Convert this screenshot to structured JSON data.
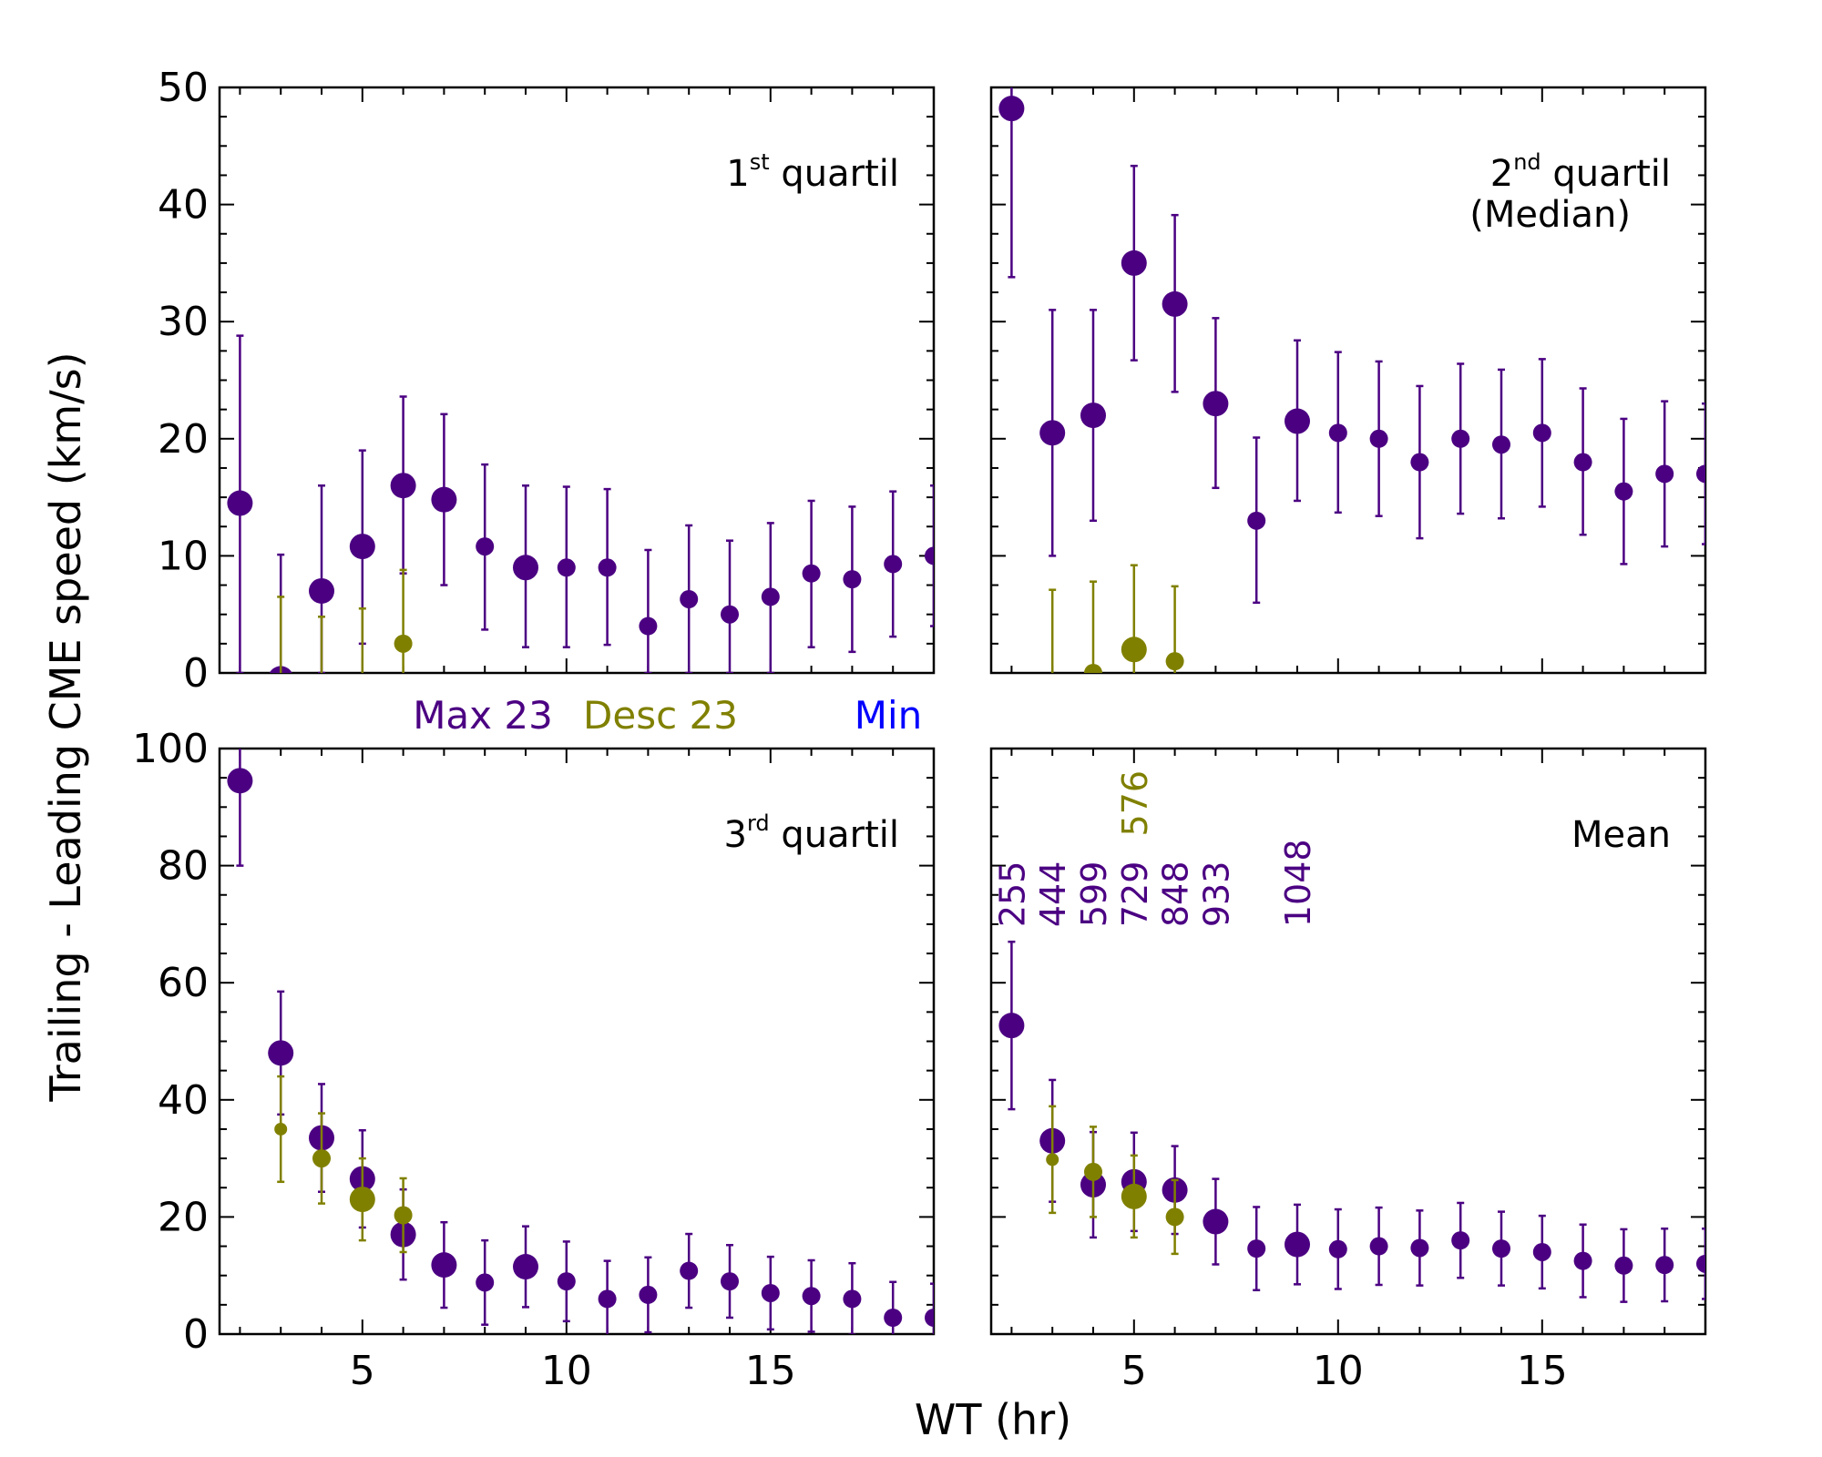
{
  "figure": {
    "xlabel": "WT (hr)",
    "ylabel": "Trailing - Leading CME speed (km/s)",
    "legend": [
      {
        "label": "Max 23",
        "color": "#4b0082"
      },
      {
        "label": "Desc 23",
        "color": "#808000"
      },
      {
        "label": "Min",
        "color": "#0000ff"
      }
    ],
    "colors": {
      "max23": "#4b0082",
      "desc23": "#808000",
      "min": "#0000ff",
      "axis": "#000000"
    }
  },
  "chart_data": [
    {
      "type": "scatter",
      "panel": "top-left",
      "title": "1st quartil",
      "title_main": "1",
      "title_sup": "st",
      "title_rest": "quartil",
      "xlim": [
        1.5,
        19
      ],
      "ylim": [
        0,
        50
      ],
      "yticks": [
        0,
        10,
        20,
        30,
        40,
        50
      ],
      "xticks": [
        5,
        10,
        15
      ],
      "show_yticklabels": true,
      "show_xticklabels": false,
      "series": [
        {
          "name": "Max 23",
          "color": "#4b0082",
          "points": [
            {
              "x": 2,
              "y": 14.5,
              "lo": 0,
              "hi": 28.8,
              "size": "l"
            },
            {
              "x": 3,
              "y": -0.5,
              "lo": -0.5,
              "hi": 10.1,
              "size": "l"
            },
            {
              "x": 4,
              "y": 7,
              "lo": 0,
              "hi": 16,
              "size": "l"
            },
            {
              "x": 5,
              "y": 10.8,
              "lo": 2.5,
              "hi": 19,
              "size": "l"
            },
            {
              "x": 6,
              "y": 16,
              "lo": 8.5,
              "hi": 23.6,
              "size": "l"
            },
            {
              "x": 7,
              "y": 14.8,
              "lo": 7.5,
              "hi": 22.1,
              "size": "l"
            },
            {
              "x": 8,
              "y": 10.8,
              "lo": 3.7,
              "hi": 17.8,
              "size": "m"
            },
            {
              "x": 9,
              "y": 9,
              "lo": 2.2,
              "hi": 16,
              "size": "l"
            },
            {
              "x": 10,
              "y": 9,
              "lo": 2.2,
              "hi": 15.9,
              "size": "m"
            },
            {
              "x": 11,
              "y": 9,
              "lo": 2.4,
              "hi": 15.7,
              "size": "m"
            },
            {
              "x": 12,
              "y": 4,
              "lo": 0,
              "hi": 10.5,
              "size": "m"
            },
            {
              "x": 13,
              "y": 6.3,
              "lo": 0,
              "hi": 12.6,
              "size": "m"
            },
            {
              "x": 14,
              "y": 5,
              "lo": 0,
              "hi": 11.3,
              "size": "m"
            },
            {
              "x": 15,
              "y": 6.5,
              "lo": 0,
              "hi": 12.8,
              "size": "m"
            },
            {
              "x": 16,
              "y": 8.5,
              "lo": 2.2,
              "hi": 14.7,
              "size": "m"
            },
            {
              "x": 17,
              "y": 8,
              "lo": 1.8,
              "hi": 14.2,
              "size": "m"
            },
            {
              "x": 18,
              "y": 9.3,
              "lo": 3.1,
              "hi": 15.5,
              "size": "m"
            },
            {
              "x": 19,
              "y": 10,
              "lo": 4,
              "hi": 16,
              "size": "m"
            }
          ]
        },
        {
          "name": "Desc 23",
          "color": "#808000",
          "points": [
            {
              "x": 3,
              "y": -1,
              "lo": -1,
              "hi": 6.5,
              "size": "s"
            },
            {
              "x": 4,
              "y": -1,
              "lo": -1,
              "hi": 4.8,
              "size": "s"
            },
            {
              "x": 5,
              "y": -1,
              "lo": -1,
              "hi": 5.5,
              "size": "s"
            },
            {
              "x": 6,
              "y": 2.5,
              "lo": -1,
              "hi": 8.8,
              "size": "m"
            }
          ]
        }
      ]
    },
    {
      "type": "scatter",
      "panel": "top-right",
      "title": "2nd quartil (Median)",
      "title_main": "2",
      "title_sup": "nd",
      "title_rest": "quartil",
      "title_line2": "(Median)",
      "xlim": [
        1.5,
        19
      ],
      "ylim": [
        0,
        50
      ],
      "yticks": [
        0,
        10,
        20,
        30,
        40,
        50
      ],
      "xticks": [
        5,
        10,
        15
      ],
      "show_yticklabels": false,
      "show_xticklabels": false,
      "series": [
        {
          "name": "Max 23",
          "color": "#4b0082",
          "points": [
            {
              "x": 2,
              "y": 48.2,
              "lo": 33.8,
              "hi": 62,
              "size": "l"
            },
            {
              "x": 3,
              "y": 20.5,
              "lo": 10,
              "hi": 31,
              "size": "l"
            },
            {
              "x": 4,
              "y": 22,
              "lo": 13,
              "hi": 31,
              "size": "l"
            },
            {
              "x": 5,
              "y": 35,
              "lo": 26.7,
              "hi": 43.3,
              "size": "l"
            },
            {
              "x": 6,
              "y": 31.5,
              "lo": 24,
              "hi": 39.1,
              "size": "l"
            },
            {
              "x": 7,
              "y": 23,
              "lo": 15.8,
              "hi": 30.3,
              "size": "l"
            },
            {
              "x": 8,
              "y": 13,
              "lo": 6,
              "hi": 20.1,
              "size": "m"
            },
            {
              "x": 9,
              "y": 21.5,
              "lo": 14.7,
              "hi": 28.4,
              "size": "l"
            },
            {
              "x": 10,
              "y": 20.5,
              "lo": 13.7,
              "hi": 27.4,
              "size": "m"
            },
            {
              "x": 11,
              "y": 20,
              "lo": 13.4,
              "hi": 26.6,
              "size": "m"
            },
            {
              "x": 12,
              "y": 18,
              "lo": 11.5,
              "hi": 24.5,
              "size": "m"
            },
            {
              "x": 13,
              "y": 20,
              "lo": 13.6,
              "hi": 26.4,
              "size": "m"
            },
            {
              "x": 14,
              "y": 19.5,
              "lo": 13.2,
              "hi": 25.9,
              "size": "m"
            },
            {
              "x": 15,
              "y": 20.5,
              "lo": 14.2,
              "hi": 26.8,
              "size": "m"
            },
            {
              "x": 16,
              "y": 18,
              "lo": 11.8,
              "hi": 24.3,
              "size": "m"
            },
            {
              "x": 17,
              "y": 15.5,
              "lo": 9.3,
              "hi": 21.7,
              "size": "m"
            },
            {
              "x": 18,
              "y": 17,
              "lo": 10.8,
              "hi": 23.2,
              "size": "m"
            },
            {
              "x": 19,
              "y": 17,
              "lo": 11,
              "hi": 23,
              "size": "m"
            }
          ]
        },
        {
          "name": "Desc 23",
          "color": "#808000",
          "points": [
            {
              "x": 3,
              "y": -1,
              "lo": -1,
              "hi": 7.1,
              "size": "s"
            },
            {
              "x": 4,
              "y": 0,
              "lo": -1,
              "hi": 7.8,
              "size": "m"
            },
            {
              "x": 5,
              "y": 2,
              "lo": -1,
              "hi": 9.2,
              "size": "l"
            },
            {
              "x": 6,
              "y": 1,
              "lo": -1,
              "hi": 7.4,
              "size": "m"
            }
          ]
        }
      ]
    },
    {
      "type": "scatter",
      "panel": "bottom-left",
      "title": "3rd quartil",
      "title_main": "3",
      "title_sup": "rd",
      "title_rest": "quartil",
      "xlim": [
        1.5,
        19
      ],
      "ylim": [
        0,
        100
      ],
      "yticks": [
        0,
        20,
        40,
        60,
        80,
        100
      ],
      "xticks": [
        5,
        10,
        15
      ],
      "show_yticklabels": true,
      "show_xticklabels": true,
      "series": [
        {
          "name": "Max 23",
          "color": "#4b0082",
          "points": [
            {
              "x": 2,
              "y": 94.5,
              "lo": 80,
              "hi": 110,
              "size": "l"
            },
            {
              "x": 3,
              "y": 48,
              "lo": 37.5,
              "hi": 58.5,
              "size": "l"
            },
            {
              "x": 4,
              "y": 33.5,
              "lo": 24.3,
              "hi": 42.7,
              "size": "l"
            },
            {
              "x": 5,
              "y": 26.5,
              "lo": 18.2,
              "hi": 34.8,
              "size": "l"
            },
            {
              "x": 6,
              "y": 17,
              "lo": 9.3,
              "hi": 24.7,
              "size": "l"
            },
            {
              "x": 7,
              "y": 11.8,
              "lo": 4.5,
              "hi": 19.1,
              "size": "l"
            },
            {
              "x": 8,
              "y": 8.8,
              "lo": 1.6,
              "hi": 16,
              "size": "m"
            },
            {
              "x": 9,
              "y": 11.5,
              "lo": 4.6,
              "hi": 18.4,
              "size": "l"
            },
            {
              "x": 10,
              "y": 9,
              "lo": 2.2,
              "hi": 15.8,
              "size": "m"
            },
            {
              "x": 11,
              "y": 6,
              "lo": -0.5,
              "hi": 12.5,
              "size": "m"
            },
            {
              "x": 12,
              "y": 6.7,
              "lo": 0.3,
              "hi": 13.1,
              "size": "m"
            },
            {
              "x": 13,
              "y": 10.8,
              "lo": 4.5,
              "hi": 17.1,
              "size": "m"
            },
            {
              "x": 14,
              "y": 9,
              "lo": 2.8,
              "hi": 15.2,
              "size": "m"
            },
            {
              "x": 15,
              "y": 7,
              "lo": 0.8,
              "hi": 13.2,
              "size": "m"
            },
            {
              "x": 16,
              "y": 6.5,
              "lo": 0.4,
              "hi": 12.6,
              "size": "m"
            },
            {
              "x": 17,
              "y": 6,
              "lo": -0.1,
              "hi": 12.1,
              "size": "m"
            },
            {
              "x": 18,
              "y": 2.8,
              "lo": -3.3,
              "hi": 8.9,
              "size": "m"
            },
            {
              "x": 19,
              "y": 2.8,
              "lo": -3,
              "hi": 8.6,
              "size": "m"
            }
          ]
        },
        {
          "name": "Desc 23",
          "color": "#808000",
          "points": [
            {
              "x": 3,
              "y": 35,
              "lo": 26,
              "hi": 44,
              "size": "s"
            },
            {
              "x": 4,
              "y": 30,
              "lo": 22.3,
              "hi": 37.7,
              "size": "m"
            },
            {
              "x": 5,
              "y": 23,
              "lo": 16,
              "hi": 30,
              "size": "l"
            },
            {
              "x": 6,
              "y": 20.3,
              "lo": 14,
              "hi": 26.6,
              "size": "m"
            }
          ]
        }
      ]
    },
    {
      "type": "scatter",
      "panel": "bottom-right",
      "title": "Mean",
      "title_main": "Mean",
      "xlim": [
        1.5,
        19
      ],
      "ylim": [
        0,
        100
      ],
      "yticks": [
        0,
        20,
        40,
        60,
        80,
        100
      ],
      "xticks": [
        5,
        10,
        15
      ],
      "show_yticklabels": false,
      "show_xticklabels": true,
      "annotations": [
        {
          "text": "255",
          "x": 2,
          "color": "#4b0082"
        },
        {
          "text": "444",
          "x": 3,
          "color": "#4b0082"
        },
        {
          "text": "599",
          "x": 4,
          "color": "#4b0082"
        },
        {
          "text": "729",
          "x": 5,
          "color": "#4b0082"
        },
        {
          "text": "848",
          "x": 6,
          "color": "#4b0082"
        },
        {
          "text": "933",
          "x": 7,
          "color": "#4b0082"
        },
        {
          "text": "1048",
          "x": 9,
          "color": "#4b0082"
        },
        {
          "text": "576",
          "x": 5,
          "color": "#808000"
        }
      ],
      "series": [
        {
          "name": "Max 23",
          "color": "#4b0082",
          "points": [
            {
              "x": 2,
              "y": 52.7,
              "lo": 38.4,
              "hi": 67,
              "size": "l"
            },
            {
              "x": 3,
              "y": 33,
              "lo": 22.6,
              "hi": 43.4,
              "size": "l"
            },
            {
              "x": 4,
              "y": 25.5,
              "lo": 16.5,
              "hi": 34.5,
              "size": "l"
            },
            {
              "x": 5,
              "y": 26,
              "lo": 17.6,
              "hi": 34.4,
              "size": "l"
            },
            {
              "x": 6,
              "y": 24.6,
              "lo": 17.1,
              "hi": 32.1,
              "size": "l"
            },
            {
              "x": 7,
              "y": 19.2,
              "lo": 11.9,
              "hi": 26.5,
              "size": "l"
            },
            {
              "x": 8,
              "y": 14.6,
              "lo": 7.5,
              "hi": 21.7,
              "size": "m"
            },
            {
              "x": 9,
              "y": 15.3,
              "lo": 8.5,
              "hi": 22.1,
              "size": "l"
            },
            {
              "x": 10,
              "y": 14.5,
              "lo": 7.7,
              "hi": 21.3,
              "size": "m"
            },
            {
              "x": 11,
              "y": 15,
              "lo": 8.4,
              "hi": 21.6,
              "size": "m"
            },
            {
              "x": 12,
              "y": 14.7,
              "lo": 8.3,
              "hi": 21.1,
              "size": "m"
            },
            {
              "x": 13,
              "y": 16,
              "lo": 9.6,
              "hi": 22.4,
              "size": "m"
            },
            {
              "x": 14,
              "y": 14.6,
              "lo": 8.3,
              "hi": 20.9,
              "size": "m"
            },
            {
              "x": 15,
              "y": 14,
              "lo": 7.8,
              "hi": 20.2,
              "size": "m"
            },
            {
              "x": 16,
              "y": 12.5,
              "lo": 6.3,
              "hi": 18.7,
              "size": "m"
            },
            {
              "x": 17,
              "y": 11.7,
              "lo": 5.5,
              "hi": 17.9,
              "size": "m"
            },
            {
              "x": 18,
              "y": 11.8,
              "lo": 5.6,
              "hi": 18,
              "size": "m"
            },
            {
              "x": 19,
              "y": 12,
              "lo": 6,
              "hi": 18,
              "size": "m"
            }
          ]
        },
        {
          "name": "Desc 23",
          "color": "#808000",
          "points": [
            {
              "x": 3,
              "y": 29.8,
              "lo": 20.7,
              "hi": 38.9,
              "size": "s"
            },
            {
              "x": 4,
              "y": 27.7,
              "lo": 20,
              "hi": 35.4,
              "size": "m"
            },
            {
              "x": 5,
              "y": 23.5,
              "lo": 16.5,
              "hi": 30.5,
              "size": "l"
            },
            {
              "x": 6,
              "y": 20,
              "lo": 13.7,
              "hi": 26.3,
              "size": "m"
            }
          ]
        }
      ]
    }
  ]
}
